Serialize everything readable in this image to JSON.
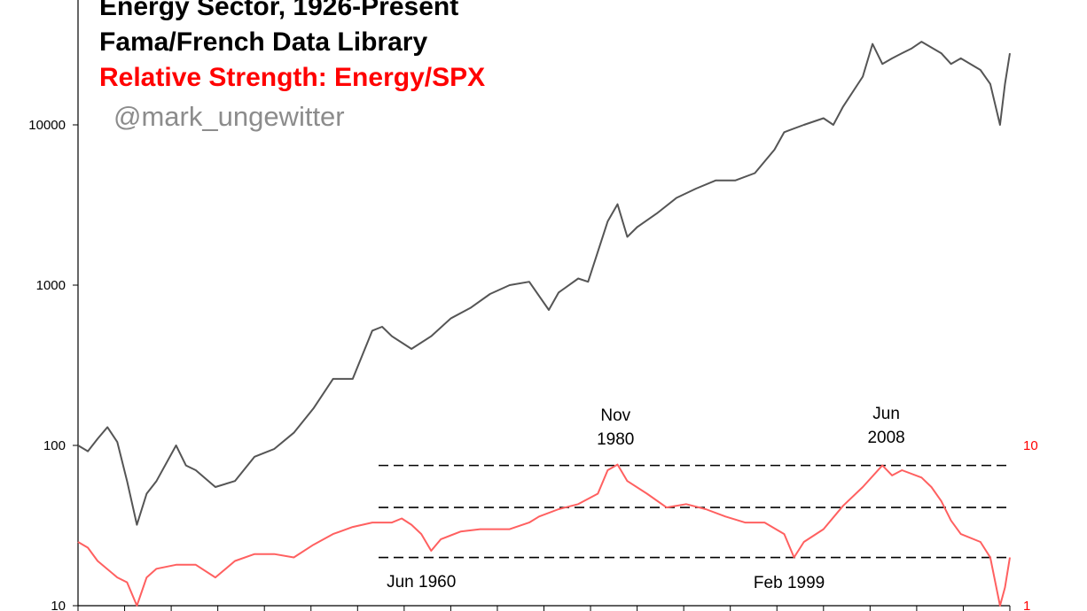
{
  "chart_data": {
    "type": "line",
    "title_lines": [
      "Energy Sector, 1926-Present",
      "Fama/French Data Library",
      "Relative Strength: Energy/SPX"
    ],
    "watermark": "@mark_ungewitter",
    "y_scale": "log",
    "ylim": [
      10,
      50000
    ],
    "y_ticks": [
      "10",
      "100",
      "1000",
      "10000"
    ],
    "y2_scale": "log",
    "y2_ticks": [
      "1",
      "10"
    ],
    "xlim": [
      1926,
      2021
    ],
    "grid": false,
    "legend": "none",
    "series": [
      {
        "axis": "left",
        "color": "#555555",
        "x": [
          1926,
          1927,
          1928,
          1929,
          1930,
          1931,
          1932,
          1933,
          1934,
          1936,
          1937,
          1938,
          1940,
          1942,
          1944,
          1946,
          1948,
          1950,
          1952,
          1954,
          1956,
          1957,
          1958,
          1960,
          1962,
          1964,
          1966,
          1968,
          1970,
          1972,
          1974,
          1975,
          1977,
          1978,
          1980,
          1981,
          1982,
          1983,
          1985,
          1987,
          1989,
          1991,
          1993,
          1995,
          1997,
          1998,
          2000,
          2002,
          2003,
          2004,
          2006,
          2007,
          2008,
          2009,
          2010,
          2011,
          2012,
          2014,
          2015,
          2016,
          2018,
          2019,
          2020,
          2020.5,
          2021
        ],
        "values": [
          100,
          92,
          110,
          130,
          105,
          60,
          32,
          50,
          60,
          100,
          75,
          70,
          55,
          60,
          85,
          95,
          120,
          170,
          260,
          260,
          520,
          550,
          480,
          400,
          480,
          620,
          720,
          880,
          1000,
          1050,
          700,
          900,
          1100,
          1050,
          2500,
          3200,
          2000,
          2300,
          2800,
          3500,
          4000,
          4500,
          4500,
          5000,
          7000,
          9000,
          10000,
          11000,
          10000,
          13000,
          20000,
          32000,
          24000,
          26000,
          28000,
          30000,
          33000,
          28000,
          24000,
          26000,
          22000,
          18000,
          10000,
          18000,
          28000
        ]
      },
      {
        "axis": "right",
        "color": "#ff6060",
        "x": [
          1926,
          1927,
          1928,
          1930,
          1931,
          1932,
          1933,
          1934,
          1936,
          1938,
          1940,
          1942,
          1944,
          1946,
          1948,
          1950,
          1952,
          1954,
          1956,
          1958,
          1959,
          1960,
          1961,
          1962,
          1963,
          1965,
          1967,
          1970,
          1972,
          1973,
          1975,
          1977,
          1979,
          1980,
          1981,
          1982,
          1984,
          1986,
          1988,
          1990,
          1992,
          1994,
          1996,
          1998,
          1999,
          2000,
          2002,
          2004,
          2006,
          2008,
          2009,
          2010,
          2012,
          2013,
          2014,
          2015,
          2016,
          2018,
          2019,
          2020,
          2020.5,
          2021
        ],
        "values": [
          2.5,
          2.3,
          1.9,
          1.5,
          1.4,
          1.0,
          1.5,
          1.7,
          1.8,
          1.8,
          1.5,
          1.9,
          2.1,
          2.1,
          2.0,
          2.4,
          2.8,
          3.1,
          3.3,
          3.3,
          3.5,
          3.2,
          2.8,
          2.2,
          2.6,
          2.9,
          3.0,
          3.0,
          3.3,
          3.6,
          4.0,
          4.3,
          5.0,
          7.0,
          7.6,
          6.0,
          5.0,
          4.1,
          4.3,
          4.0,
          3.6,
          3.3,
          3.3,
          2.8,
          2.0,
          2.5,
          3.0,
          4.2,
          5.5,
          7.5,
          6.5,
          7.0,
          6.3,
          5.5,
          4.5,
          3.4,
          2.8,
          2.5,
          2.0,
          1.0,
          1.3,
          2.0
        ]
      }
    ],
    "reference_lines_right_axis": [
      7.5,
      4.1,
      2.0
    ],
    "annotations": [
      {
        "lines": [
          "Nov",
          "1980"
        ],
        "x": 1980.8
      },
      {
        "lines": [
          "Jun",
          "2008"
        ],
        "x": 2008.4
      },
      {
        "lines": [
          "Jun 1960"
        ],
        "x": 1961
      },
      {
        "lines": [
          "Feb 1999"
        ],
        "x": 1998.5
      }
    ]
  }
}
